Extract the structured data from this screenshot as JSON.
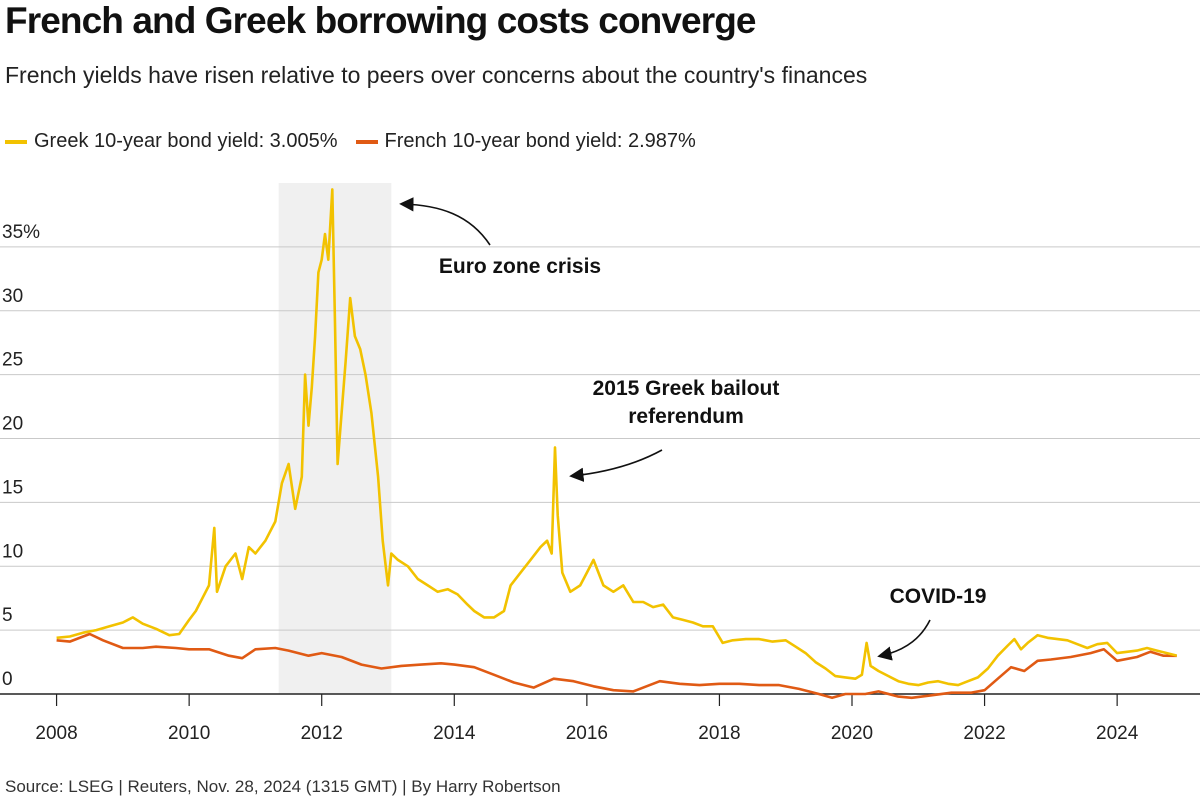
{
  "title": "French and Greek borrowing costs converge",
  "subtitle": "French yields have risen relative to peers over concerns about the country's finances",
  "source": "Source: LSEG | Reuters, Nov. 28, 2024 (1315 GMT) | By Harry Robertson",
  "chart_data": {
    "type": "line",
    "x_axis": {
      "min": 2007.75,
      "max": 2025.25,
      "ticks": [
        2008,
        2010,
        2012,
        2014,
        2016,
        2018,
        2020,
        2022,
        2024
      ],
      "tick_labels": [
        "2008",
        "2010",
        "2012",
        "2014",
        "2016",
        "2018",
        "2020",
        "2022",
        "2024"
      ]
    },
    "y_axis": {
      "min": 0,
      "max": 40,
      "ticks": [
        0,
        5,
        10,
        15,
        20,
        25,
        30,
        35
      ],
      "tick_labels": [
        "0",
        "5",
        "10",
        "15",
        "20",
        "25",
        "30",
        "35%"
      ]
    },
    "grid": "horizontal",
    "legend_position": "top-left",
    "shaded_period": {
      "label": "Euro zone crisis",
      "x_start": 2011.35,
      "x_end": 2013.05,
      "color": "#f0f0f0"
    },
    "series": [
      {
        "name": "Greek 10-year bond yield: 3.005%",
        "color": "#f2c200",
        "points": [
          [
            2008.0,
            4.4
          ],
          [
            2008.2,
            4.5
          ],
          [
            2008.4,
            4.8
          ],
          [
            2008.6,
            5.0
          ],
          [
            2008.8,
            5.3
          ],
          [
            2009.0,
            5.6
          ],
          [
            2009.15,
            6.0
          ],
          [
            2009.3,
            5.5
          ],
          [
            2009.5,
            5.1
          ],
          [
            2009.7,
            4.6
          ],
          [
            2009.85,
            4.7
          ],
          [
            2010.0,
            5.8
          ],
          [
            2010.1,
            6.5
          ],
          [
            2010.2,
            7.5
          ],
          [
            2010.3,
            8.5
          ],
          [
            2010.38,
            13.0
          ],
          [
            2010.42,
            8.0
          ],
          [
            2010.55,
            10.0
          ],
          [
            2010.7,
            11.0
          ],
          [
            2010.8,
            9.0
          ],
          [
            2010.9,
            11.5
          ],
          [
            2011.0,
            11.0
          ],
          [
            2011.15,
            12.0
          ],
          [
            2011.3,
            13.5
          ],
          [
            2011.4,
            16.5
          ],
          [
            2011.5,
            18.0
          ],
          [
            2011.6,
            14.5
          ],
          [
            2011.7,
            17.0
          ],
          [
            2011.75,
            25.0
          ],
          [
            2011.8,
            21.0
          ],
          [
            2011.85,
            24.0
          ],
          [
            2011.9,
            28.0
          ],
          [
            2011.95,
            33.0
          ],
          [
            2012.0,
            34.0
          ],
          [
            2012.05,
            36.0
          ],
          [
            2012.1,
            34.0
          ],
          [
            2012.16,
            39.5
          ],
          [
            2012.2,
            29.0
          ],
          [
            2012.24,
            18.0
          ],
          [
            2012.3,
            22.0
          ],
          [
            2012.36,
            26.0
          ],
          [
            2012.43,
            31.0
          ],
          [
            2012.5,
            28.0
          ],
          [
            2012.58,
            27.0
          ],
          [
            2012.66,
            25.0
          ],
          [
            2012.75,
            22.0
          ],
          [
            2012.85,
            17.0
          ],
          [
            2012.92,
            12.0
          ],
          [
            2013.0,
            8.5
          ],
          [
            2013.05,
            11.0
          ],
          [
            2013.15,
            10.5
          ],
          [
            2013.3,
            10.0
          ],
          [
            2013.45,
            9.0
          ],
          [
            2013.6,
            8.5
          ],
          [
            2013.75,
            8.0
          ],
          [
            2013.9,
            8.2
          ],
          [
            2014.05,
            7.8
          ],
          [
            2014.2,
            7.0
          ],
          [
            2014.3,
            6.5
          ],
          [
            2014.45,
            6.0
          ],
          [
            2014.6,
            6.0
          ],
          [
            2014.75,
            6.5
          ],
          [
            2014.85,
            8.5
          ],
          [
            2015.0,
            9.5
          ],
          [
            2015.15,
            10.5
          ],
          [
            2015.3,
            11.5
          ],
          [
            2015.4,
            12.0
          ],
          [
            2015.47,
            11.0
          ],
          [
            2015.52,
            19.3
          ],
          [
            2015.56,
            14.0
          ],
          [
            2015.63,
            9.5
          ],
          [
            2015.75,
            8.0
          ],
          [
            2015.9,
            8.5
          ],
          [
            2016.0,
            9.5
          ],
          [
            2016.1,
            10.5
          ],
          [
            2016.25,
            8.5
          ],
          [
            2016.4,
            8.0
          ],
          [
            2016.55,
            8.5
          ],
          [
            2016.7,
            7.2
          ],
          [
            2016.85,
            7.2
          ],
          [
            2017.0,
            6.8
          ],
          [
            2017.15,
            7.0
          ],
          [
            2017.3,
            6.0
          ],
          [
            2017.45,
            5.8
          ],
          [
            2017.6,
            5.6
          ],
          [
            2017.75,
            5.3
          ],
          [
            2017.9,
            5.3
          ],
          [
            2018.05,
            4.0
          ],
          [
            2018.2,
            4.2
          ],
          [
            2018.4,
            4.3
          ],
          [
            2018.6,
            4.3
          ],
          [
            2018.8,
            4.1
          ],
          [
            2019.0,
            4.2
          ],
          [
            2019.15,
            3.7
          ],
          [
            2019.3,
            3.2
          ],
          [
            2019.45,
            2.5
          ],
          [
            2019.6,
            2.0
          ],
          [
            2019.75,
            1.4
          ],
          [
            2019.9,
            1.3
          ],
          [
            2020.05,
            1.2
          ],
          [
            2020.15,
            1.5
          ],
          [
            2020.22,
            4.0
          ],
          [
            2020.28,
            2.2
          ],
          [
            2020.4,
            1.8
          ],
          [
            2020.55,
            1.4
          ],
          [
            2020.7,
            1.0
          ],
          [
            2020.85,
            0.8
          ],
          [
            2021.0,
            0.7
          ],
          [
            2021.15,
            0.9
          ],
          [
            2021.3,
            1.0
          ],
          [
            2021.45,
            0.8
          ],
          [
            2021.6,
            0.7
          ],
          [
            2021.75,
            1.0
          ],
          [
            2021.9,
            1.3
          ],
          [
            2022.05,
            2.0
          ],
          [
            2022.2,
            3.0
          ],
          [
            2022.35,
            3.8
          ],
          [
            2022.45,
            4.3
          ],
          [
            2022.55,
            3.5
          ],
          [
            2022.65,
            4.0
          ],
          [
            2022.8,
            4.6
          ],
          [
            2022.95,
            4.4
          ],
          [
            2023.1,
            4.3
          ],
          [
            2023.25,
            4.2
          ],
          [
            2023.4,
            3.9
          ],
          [
            2023.55,
            3.6
          ],
          [
            2023.7,
            3.9
          ],
          [
            2023.85,
            4.0
          ],
          [
            2024.0,
            3.2
          ],
          [
            2024.15,
            3.3
          ],
          [
            2024.3,
            3.4
          ],
          [
            2024.45,
            3.6
          ],
          [
            2024.6,
            3.4
          ],
          [
            2024.75,
            3.2
          ],
          [
            2024.9,
            3.005
          ]
        ]
      },
      {
        "name": "French 10-year bond yield: 2.987%",
        "color": "#e05a14",
        "points": [
          [
            2008.0,
            4.2
          ],
          [
            2008.2,
            4.1
          ],
          [
            2008.4,
            4.5
          ],
          [
            2008.5,
            4.7
          ],
          [
            2008.7,
            4.2
          ],
          [
            2009.0,
            3.6
          ],
          [
            2009.3,
            3.6
          ],
          [
            2009.5,
            3.7
          ],
          [
            2009.8,
            3.6
          ],
          [
            2010.0,
            3.5
          ],
          [
            2010.3,
            3.5
          ],
          [
            2010.6,
            3.0
          ],
          [
            2010.8,
            2.8
          ],
          [
            2011.0,
            3.5
          ],
          [
            2011.3,
            3.6
          ],
          [
            2011.5,
            3.4
          ],
          [
            2011.8,
            3.0
          ],
          [
            2012.0,
            3.2
          ],
          [
            2012.3,
            2.9
          ],
          [
            2012.6,
            2.3
          ],
          [
            2012.9,
            2.0
          ],
          [
            2013.2,
            2.2
          ],
          [
            2013.5,
            2.3
          ],
          [
            2013.8,
            2.4
          ],
          [
            2014.0,
            2.3
          ],
          [
            2014.3,
            2.1
          ],
          [
            2014.6,
            1.5
          ],
          [
            2014.9,
            0.9
          ],
          [
            2015.2,
            0.5
          ],
          [
            2015.5,
            1.2
          ],
          [
            2015.8,
            1.0
          ],
          [
            2016.1,
            0.6
          ],
          [
            2016.4,
            0.3
          ],
          [
            2016.7,
            0.2
          ],
          [
            2016.9,
            0.6
          ],
          [
            2017.1,
            1.0
          ],
          [
            2017.4,
            0.8
          ],
          [
            2017.7,
            0.7
          ],
          [
            2018.0,
            0.8
          ],
          [
            2018.3,
            0.8
          ],
          [
            2018.6,
            0.7
          ],
          [
            2018.9,
            0.7
          ],
          [
            2019.2,
            0.4
          ],
          [
            2019.5,
            0.0
          ],
          [
            2019.7,
            -0.3
          ],
          [
            2019.9,
            0.0
          ],
          [
            2020.2,
            0.0
          ],
          [
            2020.4,
            0.2
          ],
          [
            2020.7,
            -0.2
          ],
          [
            2020.9,
            -0.3
          ],
          [
            2021.2,
            -0.1
          ],
          [
            2021.5,
            0.1
          ],
          [
            2021.8,
            0.1
          ],
          [
            2022.0,
            0.3
          ],
          [
            2022.2,
            1.2
          ],
          [
            2022.4,
            2.1
          ],
          [
            2022.6,
            1.8
          ],
          [
            2022.8,
            2.6
          ],
          [
            2023.0,
            2.7
          ],
          [
            2023.3,
            2.9
          ],
          [
            2023.6,
            3.2
          ],
          [
            2023.8,
            3.5
          ],
          [
            2024.0,
            2.6
          ],
          [
            2024.3,
            2.9
          ],
          [
            2024.5,
            3.3
          ],
          [
            2024.7,
            3.0
          ],
          [
            2024.9,
            2.987
          ]
        ]
      }
    ],
    "annotations": [
      {
        "id": "euro",
        "text_lines": [
          "Euro zone crisis"
        ]
      },
      {
        "id": "referendum",
        "text_lines": [
          "2015 Greek bailout",
          "referendum"
        ]
      },
      {
        "id": "covid",
        "text_lines": [
          "COVID-19"
        ]
      }
    ]
  }
}
